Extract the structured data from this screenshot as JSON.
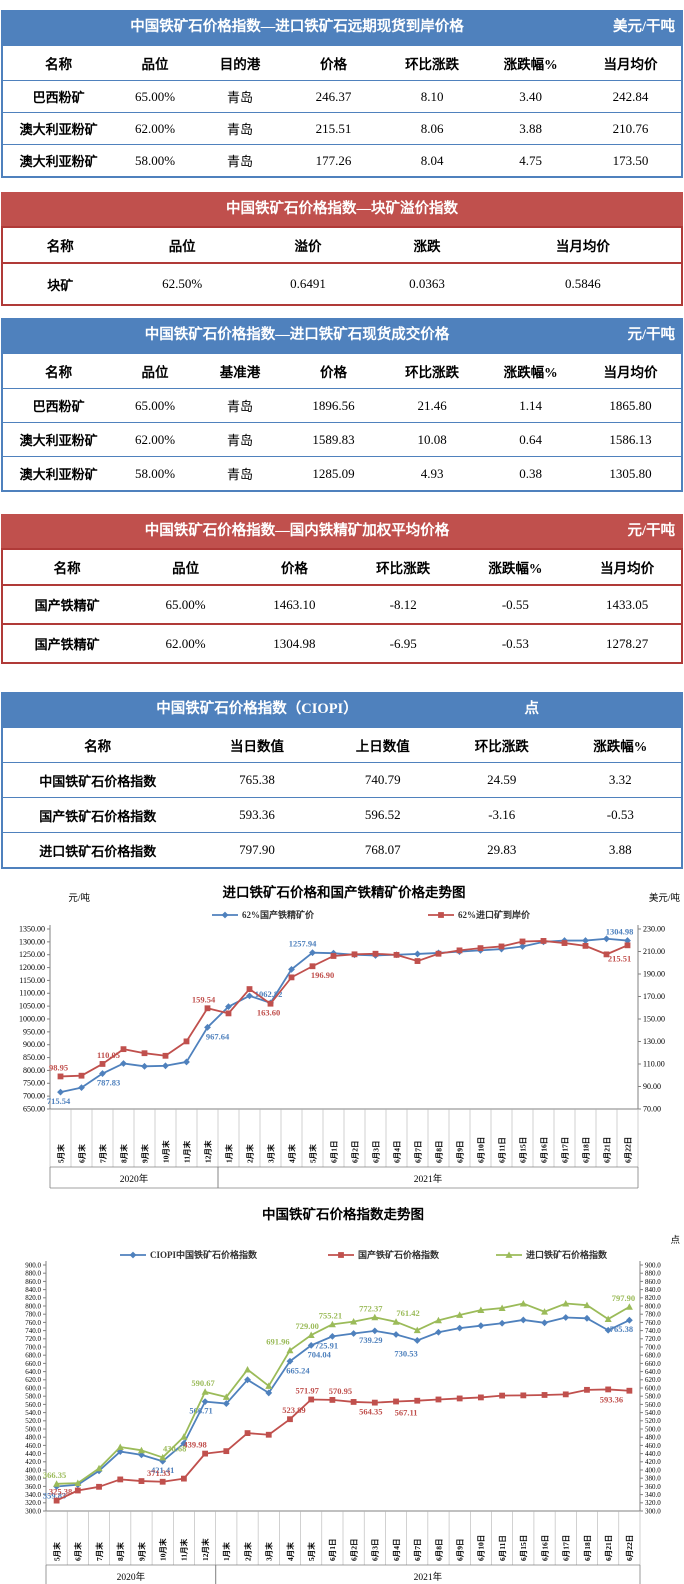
{
  "accent_colors": {
    "blue": "#4f81bd",
    "red": "#c0504d",
    "green": "#9bbb59"
  },
  "tables": [
    {
      "id": "forward",
      "theme": "blue",
      "title": "中国铁矿石价格指数—进口铁矿石远期现货到岸价格",
      "unit": "美元/干吨",
      "columns": [
        "名称",
        "品位",
        "目的港",
        "价格",
        "环比涨跌",
        "涨跌幅%",
        "当月均价"
      ],
      "rows": [
        [
          "巴西粉矿",
          "65.00%",
          "青岛",
          "246.37",
          "8.10",
          "3.40",
          "242.84"
        ],
        [
          "澳大利亚粉矿",
          "62.00%",
          "青岛",
          "215.51",
          "8.06",
          "3.88",
          "210.76"
        ],
        [
          "澳大利亚粉矿",
          "58.00%",
          "青岛",
          "177.26",
          "8.04",
          "4.75",
          "173.50"
        ]
      ]
    },
    {
      "id": "lump",
      "theme": "red",
      "title": "中国铁矿石价格指数—块矿溢价指数",
      "unit": "",
      "columns": [
        "名称",
        "品位",
        "溢价",
        "涨跌",
        "当月均价"
      ],
      "rows": [
        [
          "块矿",
          "62.50%",
          "0.6491",
          "0.0363",
          "0.5846"
        ]
      ]
    },
    {
      "id": "spot",
      "theme": "blue",
      "title": "中国铁矿石价格指数—进口铁矿石现货成交价格",
      "unit": "元/干吨",
      "columns": [
        "名称",
        "品位",
        "基准港",
        "价格",
        "环比涨跌",
        "涨跌幅%",
        "当月均价"
      ],
      "rows": [
        [
          "巴西粉矿",
          "65.00%",
          "青岛",
          "1896.56",
          "21.46",
          "1.14",
          "1865.80"
        ],
        [
          "澳大利亚粉矿",
          "62.00%",
          "青岛",
          "1589.83",
          "10.08",
          "0.64",
          "1586.13"
        ],
        [
          "澳大利亚粉矿",
          "58.00%",
          "青岛",
          "1285.09",
          "4.93",
          "0.38",
          "1305.80"
        ]
      ]
    },
    {
      "id": "dom",
      "theme": "red",
      "title": "中国铁矿石价格指数—国内铁精矿加权平均价格",
      "unit": "元/干吨",
      "columns": [
        "名称",
        "品位",
        "价格",
        "环比涨跌",
        "涨跌幅%",
        "当月均价"
      ],
      "rows": [
        [
          "国产铁精矿",
          "65.00%",
          "1463.10",
          "-8.12",
          "-0.55",
          "1433.05"
        ],
        [
          "国产铁精矿",
          "62.00%",
          "1304.98",
          "-6.95",
          "-0.53",
          "1278.27"
        ]
      ]
    },
    {
      "id": "ciopi",
      "theme": "blue",
      "title": "中国铁矿石价格指数（CIOPI）",
      "unit": "点",
      "columns": [
        "名称",
        "当日数值",
        "上日数值",
        "环比涨跌",
        "涨跌幅%"
      ],
      "rows": [
        [
          "中国铁矿石价格指数",
          "765.38",
          "740.79",
          "24.59",
          "3.32"
        ],
        [
          "国产铁矿石价格指数",
          "593.36",
          "596.52",
          "-3.16",
          "-0.53"
        ],
        [
          "进口铁矿石价格指数",
          "797.90",
          "768.07",
          "29.83",
          "3.88"
        ]
      ]
    }
  ],
  "chart_data": [
    {
      "type": "line",
      "title": "进口铁矿石价格和国产铁精矿价格走势图",
      "left_axis": {
        "unit": "元/吨",
        "min": 650,
        "max": 1350,
        "step": 50,
        "decimals": 2
      },
      "right_axis": {
        "unit": "美元/吨",
        "min": 70,
        "max": 230,
        "step": 20,
        "decimals": 2
      },
      "grid": false,
      "legend_position": "top",
      "categories": [
        "5月末",
        "6月末",
        "7月末",
        "8月末",
        "9月末",
        "10月末",
        "11月末",
        "12月末",
        "1月末",
        "2月末",
        "3月末",
        "4月末",
        "5月末",
        "6月1日",
        "6月2日",
        "6月3日",
        "6月4日",
        "6月7日",
        "6月8日",
        "6月9日",
        "6月10日",
        "6月11日",
        "6月15日",
        "6月16日",
        "6月17日",
        "6月18日",
        "6月21日",
        "6月22日"
      ],
      "year_groups": [
        {
          "label": "2020年",
          "from": 0,
          "to": 7
        },
        {
          "label": "2021年",
          "from": 8,
          "to": 27
        }
      ],
      "series": [
        {
          "name": "62%国产铁精矿价",
          "color": "#4f81bd",
          "axis": "left",
          "marker": "diamond",
          "values": [
            715.54,
            733,
            787.83,
            827,
            816,
            818,
            833,
            967.64,
            1048,
            1090,
            1062.82,
            1193,
            1257.94,
            1256,
            1250,
            1247,
            1250,
            1253,
            1257,
            1262,
            1267,
            1272,
            1282,
            1300,
            1305,
            1305,
            1311.93,
            1304.98
          ],
          "point_labels": [
            {
              "i": 0,
              "t": "715.54",
              "pos": "below",
              "dx": -2
            },
            {
              "i": 2,
              "t": "787.83",
              "pos": "below",
              "dx": 6
            },
            {
              "i": 7,
              "t": "967.64",
              "pos": "below",
              "dx": 10
            },
            {
              "i": 10,
              "t": "1062.82",
              "pos": "above",
              "dx": -2
            },
            {
              "i": 12,
              "t": "1257.94",
              "pos": "above",
              "dx": -10
            },
            {
              "i": 27,
              "t": "1304.98",
              "pos": "above",
              "dx": -8
            }
          ]
        },
        {
          "name": "62%进口矿到岸价",
          "color": "#c0504d",
          "axis": "right",
          "marker": "square",
          "values": [
            98.95,
            99.6,
            110.05,
            123.2,
            119.6,
            117.3,
            130.1,
            159.54,
            155.0,
            176.6,
            163.6,
            187.0,
            196.9,
            206.0,
            207.5,
            208.0,
            207.0,
            201.5,
            208.0,
            211.0,
            213.0,
            214.5,
            218.9,
            219.4,
            217.5,
            215.0,
            207.45,
            215.51
          ],
          "point_labels": [
            {
              "i": 0,
              "t": "98.95",
              "pos": "above",
              "dx": -2
            },
            {
              "i": 2,
              "t": "110.05",
              "pos": "above",
              "dx": 6
            },
            {
              "i": 7,
              "t": "159.54",
              "pos": "above",
              "dx": -4
            },
            {
              "i": 10,
              "t": "163.60",
              "pos": "below",
              "dx": -2
            },
            {
              "i": 12,
              "t": "196.90",
              "pos": "below",
              "dx": 10
            },
            {
              "i": 27,
              "t": "215.51",
              "pos": "below",
              "dx": -8,
              "dy": 4
            }
          ]
        }
      ]
    },
    {
      "type": "line",
      "title": "中国铁矿石价格指数走势图",
      "left_axis": {
        "unit": "",
        "min": 300,
        "max": 900,
        "step": 20,
        "decimals": 1
      },
      "right_axis": {
        "unit": "点",
        "min": 300,
        "max": 900,
        "step": 20,
        "decimals": 1
      },
      "grid": false,
      "legend_position": "top",
      "categories": [
        "5月末",
        "6月末",
        "7月末",
        "8月末",
        "9月末",
        "10月末",
        "11月末",
        "12月末",
        "1月末",
        "2月末",
        "3月末",
        "4月末",
        "5月末",
        "6月1日",
        "6月2日",
        "6月3日",
        "6月4日",
        "6月7日",
        "6月8日",
        "6月9日",
        "6月10日",
        "6月11日",
        "6月15日",
        "6月16日",
        "6月17日",
        "6月18日",
        "6月21日",
        "6月22日"
      ],
      "year_groups": [
        {
          "label": "2020年",
          "from": 0,
          "to": 7
        },
        {
          "label": "2021年",
          "from": 8,
          "to": 27
        }
      ],
      "series": [
        {
          "name": "CIOPI中国铁矿石价格指数",
          "color": "#4f81bd",
          "axis": "left",
          "marker": "diamond",
          "values": [
            359.83,
            364,
            398,
            445,
            437,
            421.41,
            465,
            566.71,
            562,
            620,
            588,
            665.24,
            704.04,
            725.91,
            733,
            739.29,
            730.53,
            716,
            736,
            746,
            752,
            758,
            766,
            759,
            772,
            770,
            740.79,
            765.38
          ],
          "point_labels": [
            {
              "i": 0,
              "t": "359.83",
              "pos": "below",
              "dx": -2
            },
            {
              "i": 5,
              "t": "421.41",
              "pos": "below"
            },
            {
              "i": 7,
              "t": "566.71",
              "pos": "below",
              "dx": -4
            },
            {
              "i": 11,
              "t": "665.24",
              "pos": "below",
              "dx": 8
            },
            {
              "i": 12,
              "t": "704.04",
              "pos": "below",
              "dx": 8
            },
            {
              "i": 13,
              "t": "725.91",
              "pos": "below",
              "dx": -6
            },
            {
              "i": 15,
              "t": "739.29",
              "pos": "below",
              "dx": -4
            },
            {
              "i": 16,
              "t": "730.53",
              "pos": "below",
              "dx": 10,
              "dy": 10
            },
            {
              "i": 27,
              "t": "765.38",
              "pos": "below",
              "dx": -8
            }
          ]
        },
        {
          "name": "国产铁矿石价格指数",
          "color": "#c0504d",
          "axis": "left",
          "marker": "square",
          "values": [
            325.38,
            350,
            359,
            377,
            373,
            371.33,
            379,
            439.98,
            446,
            490,
            486,
            523.89,
            571.97,
            570.95,
            566,
            564.35,
            567.11,
            569,
            572,
            574.5,
            577,
            581.5,
            582,
            583,
            584.5,
            595.5,
            596.52,
            593.36
          ],
          "point_labels": [
            {
              "i": 0,
              "t": "325.38",
              "pos": "above",
              "dx": 4
            },
            {
              "i": 5,
              "t": "371.33",
              "pos": "above",
              "dx": -4
            },
            {
              "i": 7,
              "t": "439.98",
              "pos": "above",
              "dx": -10
            },
            {
              "i": 11,
              "t": "523.89",
              "pos": "above",
              "dx": 4
            },
            {
              "i": 12,
              "t": "571.97",
              "pos": "above",
              "dx": -4
            },
            {
              "i": 13,
              "t": "570.95",
              "pos": "above",
              "dx": 8
            },
            {
              "i": 15,
              "t": "564.35",
              "pos": "below",
              "dx": -4
            },
            {
              "i": 16,
              "t": "567.11",
              "pos": "below",
              "dx": 10,
              "dy": 2
            },
            {
              "i": 27,
              "t": "593.36",
              "pos": "below",
              "dx": -18
            }
          ]
        },
        {
          "name": "进口铁矿石价格指数",
          "color": "#9bbb59",
          "axis": "left",
          "marker": "triangle",
          "values": [
            366.35,
            368,
            404,
            456,
            448,
            430.68,
            481,
            590.67,
            578,
            645,
            605,
            691.96,
            729.0,
            755.21,
            762,
            772.37,
            761.42,
            741,
            765,
            778,
            790,
            795,
            806,
            786,
            806,
            802,
            768.07,
            797.9
          ],
          "point_labels": [
            {
              "i": 0,
              "t": "366.35",
              "pos": "above",
              "dx": -2
            },
            {
              "i": 5,
              "t": "430.68",
              "pos": "above",
              "dx": 12
            },
            {
              "i": 7,
              "t": "590.67",
              "pos": "above",
              "dx": -2
            },
            {
              "i": 11,
              "t": "691.96",
              "pos": "above",
              "dx": -12
            },
            {
              "i": 12,
              "t": "729.00",
              "pos": "above",
              "dx": -4
            },
            {
              "i": 13,
              "t": "755.21",
              "pos": "above",
              "dx": -2
            },
            {
              "i": 15,
              "t": "772.37",
              "pos": "above",
              "dx": -4
            },
            {
              "i": 16,
              "t": "761.42",
              "pos": "above",
              "dx": 12
            },
            {
              "i": 27,
              "t": "797.90",
              "pos": "above",
              "dx": -6
            }
          ]
        }
      ]
    }
  ]
}
